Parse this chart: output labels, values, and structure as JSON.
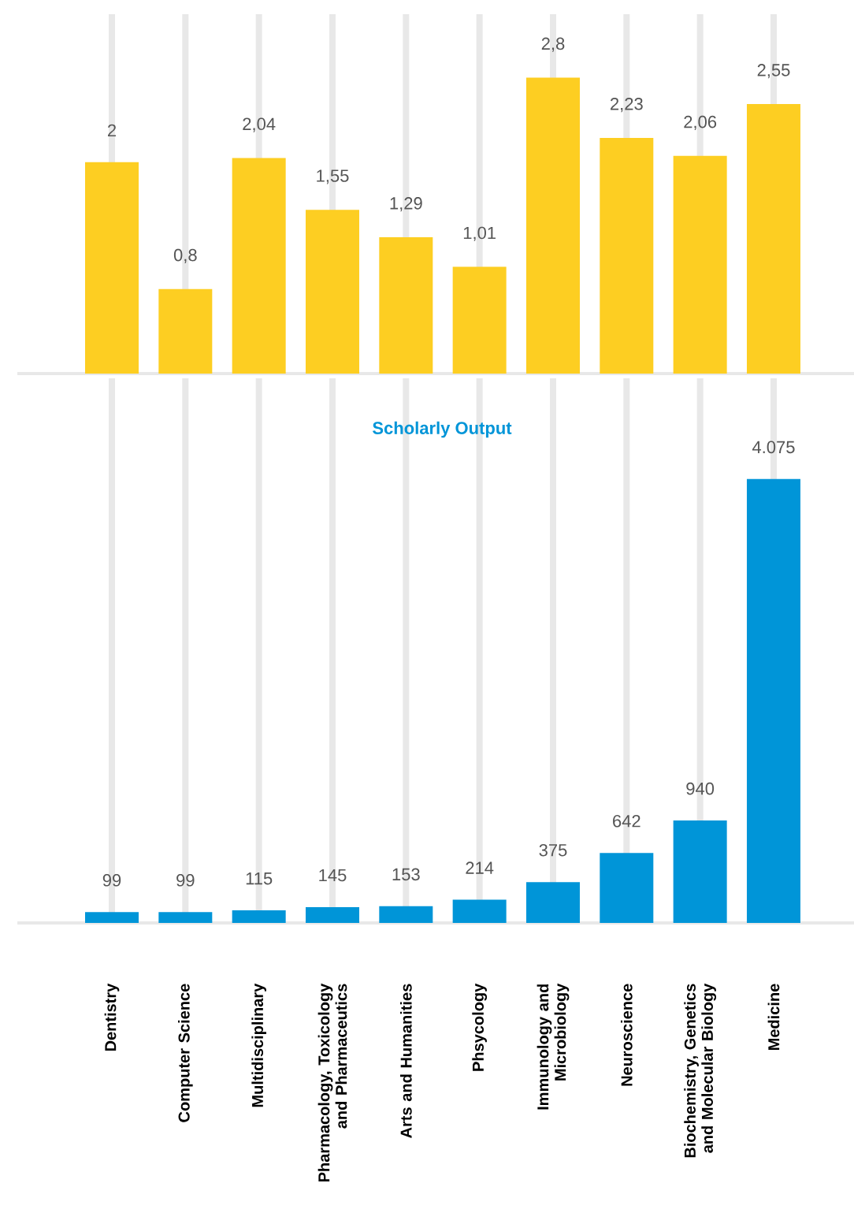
{
  "chart_data": [
    {
      "type": "bar",
      "categories": [
        null,
        null,
        null,
        null,
        null,
        null,
        null,
        null,
        null,
        null
      ],
      "values": [
        2,
        0.8,
        2.04,
        1.55,
        1.29,
        1.01,
        2.8,
        2.23,
        2.06,
        2.55
      ],
      "value_labels": [
        "2",
        "0,8",
        "2,04",
        "1,55",
        "1,29",
        "1,01",
        "2,8",
        "2,23",
        "2,06",
        "2,55"
      ],
      "color": "#fdce22",
      "ylim": [
        0,
        3.4
      ],
      "grid": "x"
    },
    {
      "type": "bar",
      "title": "Scholarly Output",
      "categories": [
        "Dentistry",
        "Computer Science",
        "Multidisciplinary",
        "Pharmacology, Toxicology and Pharmaceutics",
        "Arts and Humanities",
        "Phsycology",
        "Immunology and Microbiology",
        "Neuroscience",
        "Biochemistry, Genetics and Molecular Biology",
        "Medicine"
      ],
      "values": [
        99,
        99,
        115,
        145,
        153,
        214,
        375,
        642,
        940,
        4075
      ],
      "value_labels": [
        "99",
        "99",
        "115",
        "145",
        "153",
        "214",
        "375",
        "642",
        "940",
        "4.075"
      ],
      "color": "#0095d8",
      "ylim": [
        0,
        5000
      ],
      "grid": "x",
      "tick_labels": "x"
    }
  ]
}
